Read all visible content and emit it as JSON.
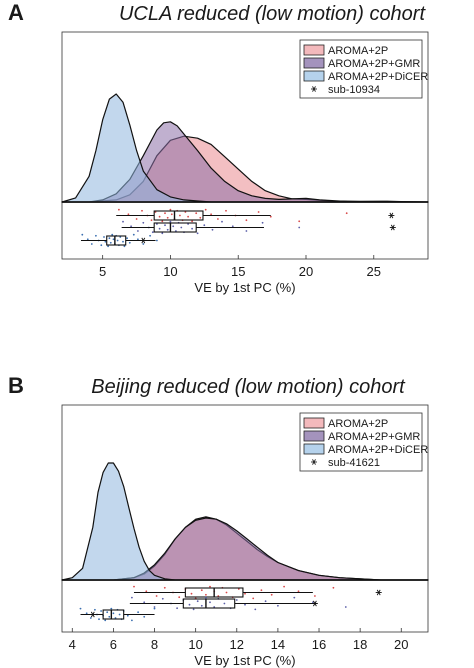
{
  "chart_data": [
    {
      "type": "area",
      "panel_letter": "A",
      "title": "UCLA reduced (low motion) cohort",
      "xlabel": "VE by 1st PC (%)",
      "ylabel": "",
      "xlim": [
        2,
        29
      ],
      "xticks": [
        5,
        10,
        15,
        20,
        25
      ],
      "xtick_labels": [
        "5",
        "10",
        "15",
        "20",
        "25"
      ],
      "grid": false,
      "legend_position": "top-right",
      "legend": [
        {
          "label": "AROMA+2P",
          "kind": "patch",
          "color": "#f3b9bc"
        },
        {
          "label": "AROMA+2P+GMR",
          "kind": "patch",
          "color": "#a493bd"
        },
        {
          "label": "AROMA+2P+DiCER",
          "kind": "patch",
          "color": "#b5d2ec"
        },
        {
          "label": "sub-10934",
          "kind": "marker",
          "color": "#222222"
        }
      ],
      "series": [
        {
          "name": "AROMA+2P",
          "color": "#e98b90",
          "dot_color": "#d94a4a",
          "density": {
            "x": [
              2,
              4,
              6,
              7,
              8,
              9,
              10,
              11,
              12,
              13,
              14,
              15,
              16,
              17,
              18,
              19,
              20,
              22,
              24,
              26,
              27,
              29
            ],
            "y": [
              0,
              0,
              0.02,
              0.07,
              0.2,
              0.45,
              0.6,
              0.64,
              0.62,
              0.56,
              0.44,
              0.32,
              0.2,
              0.11,
              0.06,
              0.03,
              0.025,
              0.01,
              0.006,
              0.008,
              0.004,
              0
            ]
          },
          "box": {
            "whislo": 6.0,
            "q1": 8.8,
            "med": 10.3,
            "q3": 12.4,
            "whishi": 17.4
          },
          "points": [
            6.2,
            6.9,
            7.5,
            7.9,
            8.3,
            8.6,
            8.9,
            9.2,
            9.4,
            9.6,
            9.8,
            10.0,
            10.1,
            10.3,
            10.5,
            10.7,
            10.9,
            11.1,
            11.3,
            11.6,
            11.9,
            12.2,
            12.6,
            13.0,
            13.5,
            14.1,
            14.8,
            15.6,
            16.5,
            17.4,
            19.5,
            23.0
          ]
        },
        {
          "name": "AROMA+2P+GMR",
          "color": "#8d6fa8",
          "dot_color": "#5b5fa8",
          "density": {
            "x": [
              2,
              4,
              5,
              6,
              7,
              8,
              9,
              9.5,
              10,
              10.5,
              11,
              12,
              13,
              14,
              15,
              16,
              17,
              18,
              19,
              20,
              21,
              23,
              29
            ],
            "y": [
              0,
              0,
              0.02,
              0.08,
              0.22,
              0.45,
              0.7,
              0.77,
              0.78,
              0.74,
              0.66,
              0.5,
              0.33,
              0.2,
              0.11,
              0.06,
              0.035,
              0.025,
              0.03,
              0.035,
              0.02,
              0.005,
              0
            ]
          },
          "box": {
            "whislo": 6.4,
            "q1": 8.8,
            "med": 10.0,
            "q3": 11.9,
            "whishi": 16.9
          },
          "points": [
            6.5,
            7.1,
            7.6,
            8.0,
            8.4,
            8.7,
            9.0,
            9.2,
            9.4,
            9.6,
            9.8,
            10.0,
            10.2,
            10.4,
            10.6,
            10.8,
            11.0,
            11.3,
            11.6,
            12.0,
            12.5,
            13.1,
            13.8,
            14.6,
            15.6,
            16.8,
            19.5
          ]
        },
        {
          "name": "AROMA+2P+DiCER",
          "color": "#8fb7df",
          "dot_color": "#3b6fb0",
          "density": {
            "x": [
              2,
              3,
              4,
              4.5,
              5,
              5.5,
              6,
              6.5,
              7,
              7.5,
              8,
              9,
              10,
              11,
              12,
              13,
              29
            ],
            "y": [
              0,
              0.04,
              0.25,
              0.5,
              0.8,
              1.0,
              1.05,
              0.97,
              0.75,
              0.5,
              0.3,
              0.12,
              0.05,
              0.02,
              0.01,
              0,
              0
            ]
          },
          "box": {
            "whislo": 3.4,
            "q1": 5.3,
            "med": 5.9,
            "q3": 6.7,
            "whishi": 8.9
          },
          "points": [
            3.5,
            3.9,
            4.2,
            4.5,
            4.7,
            4.9,
            5.1,
            5.2,
            5.4,
            5.5,
            5.6,
            5.7,
            5.8,
            5.9,
            6.0,
            6.1,
            6.2,
            6.3,
            6.5,
            6.6,
            6.8,
            7.0,
            7.3,
            7.6,
            8.0,
            8.5,
            9.0
          ]
        }
      ],
      "highlighted_subject": {
        "name": "sub-10934",
        "values": [
          26.3,
          26.4,
          8.0
        ]
      }
    },
    {
      "type": "area",
      "panel_letter": "B",
      "title": "Beijing reduced (low motion) cohort",
      "xlabel": "VE by 1st PC (%)",
      "ylabel": "",
      "xlim": [
        3.5,
        21.3
      ],
      "xticks": [
        4,
        6,
        8,
        10,
        12,
        14,
        16,
        18,
        20
      ],
      "xtick_labels": [
        "4",
        "6",
        "8",
        "10",
        "12",
        "14",
        "16",
        "18",
        "20"
      ],
      "grid": false,
      "legend_position": "top-right",
      "legend": [
        {
          "label": "AROMA+2P",
          "kind": "patch",
          "color": "#f3b9bc"
        },
        {
          "label": "AROMA+2P+GMR",
          "kind": "patch",
          "color": "#a493bd"
        },
        {
          "label": "AROMA+2P+DiCER",
          "kind": "patch",
          "color": "#b5d2ec"
        },
        {
          "label": "sub-41621",
          "kind": "marker",
          "color": "#222222"
        }
      ],
      "series": [
        {
          "name": "AROMA+2P",
          "color": "#e98b90",
          "dot_color": "#d94a4a",
          "density": {
            "x": [
              3.5,
              6,
              7,
              7.5,
              8,
              8.5,
              9,
              9.5,
              10,
              10.5,
              11,
              11.5,
              12,
              12.5,
              13,
              13.5,
              14,
              15,
              16,
              17,
              18,
              19,
              21.3
            ],
            "y": [
              0,
              0,
              0.02,
              0.05,
              0.12,
              0.22,
              0.35,
              0.45,
              0.52,
              0.54,
              0.52,
              0.47,
              0.4,
              0.33,
              0.26,
              0.2,
              0.15,
              0.08,
              0.04,
              0.02,
              0.01,
              0,
              0
            ]
          },
          "box": {
            "whislo": 7.0,
            "q1": 9.5,
            "med": 10.9,
            "q3": 12.3,
            "whishi": 15.7
          },
          "points": [
            7.0,
            7.6,
            8.1,
            8.5,
            8.9,
            9.2,
            9.5,
            9.8,
            10.0,
            10.3,
            10.5,
            10.7,
            10.9,
            11.1,
            11.3,
            11.5,
            11.8,
            12.1,
            12.4,
            12.8,
            13.2,
            13.7,
            14.3,
            15.0,
            15.8,
            16.7
          ]
        },
        {
          "name": "AROMA+2P+GMR",
          "color": "#8d6fa8",
          "dot_color": "#5b5fa8",
          "density": {
            "x": [
              3.5,
              6,
              7,
              7.5,
              8,
              8.5,
              9,
              9.5,
              10,
              10.5,
              11,
              11.5,
              12,
              12.5,
              13,
              13.5,
              14,
              15,
              16,
              17,
              18,
              19,
              21.3
            ],
            "y": [
              0,
              0,
              0.02,
              0.06,
              0.13,
              0.23,
              0.35,
              0.45,
              0.51,
              0.53,
              0.52,
              0.48,
              0.42,
              0.35,
              0.28,
              0.21,
              0.15,
              0.08,
              0.04,
              0.02,
              0.01,
              0,
              0
            ]
          },
          "box": {
            "whislo": 6.8,
            "q1": 9.4,
            "med": 10.5,
            "q3": 11.9,
            "whishi": 15.9
          },
          "points": [
            6.9,
            7.5,
            8.0,
            8.4,
            8.8,
            9.1,
            9.4,
            9.7,
            9.9,
            10.1,
            10.3,
            10.5,
            10.7,
            10.9,
            11.1,
            11.4,
            11.7,
            12.0,
            12.4,
            12.9,
            13.4,
            14.0,
            14.8,
            15.7,
            17.3
          ]
        },
        {
          "name": "AROMA+2P+DiCER",
          "color": "#8fb7df",
          "dot_color": "#3b6fb0",
          "density": {
            "x": [
              3.5,
              4,
              4.5,
              5,
              5.25,
              5.5,
              5.75,
              6,
              6.25,
              6.5,
              6.75,
              7,
              7.25,
              7.5,
              7.75,
              8,
              8.5,
              9,
              21.3
            ],
            "y": [
              0,
              0.02,
              0.1,
              0.45,
              0.75,
              0.92,
              1.0,
              1.0,
              0.93,
              0.8,
              0.62,
              0.44,
              0.28,
              0.16,
              0.08,
              0.04,
              0.01,
              0,
              0
            ]
          },
          "box": {
            "whislo": 4.4,
            "q1": 5.5,
            "med": 5.9,
            "q3": 6.5,
            "whishi": 8.0
          },
          "points": [
            4.4,
            4.7,
            4.9,
            5.1,
            5.2,
            5.3,
            5.4,
            5.5,
            5.6,
            5.7,
            5.8,
            5.9,
            6.0,
            6.1,
            6.2,
            6.3,
            6.4,
            6.5,
            6.7,
            6.9,
            7.2,
            7.5,
            8.0
          ]
        }
      ],
      "highlighted_subject": {
        "name": "sub-41621",
        "values": [
          18.9,
          15.8,
          5.0
        ]
      }
    }
  ]
}
